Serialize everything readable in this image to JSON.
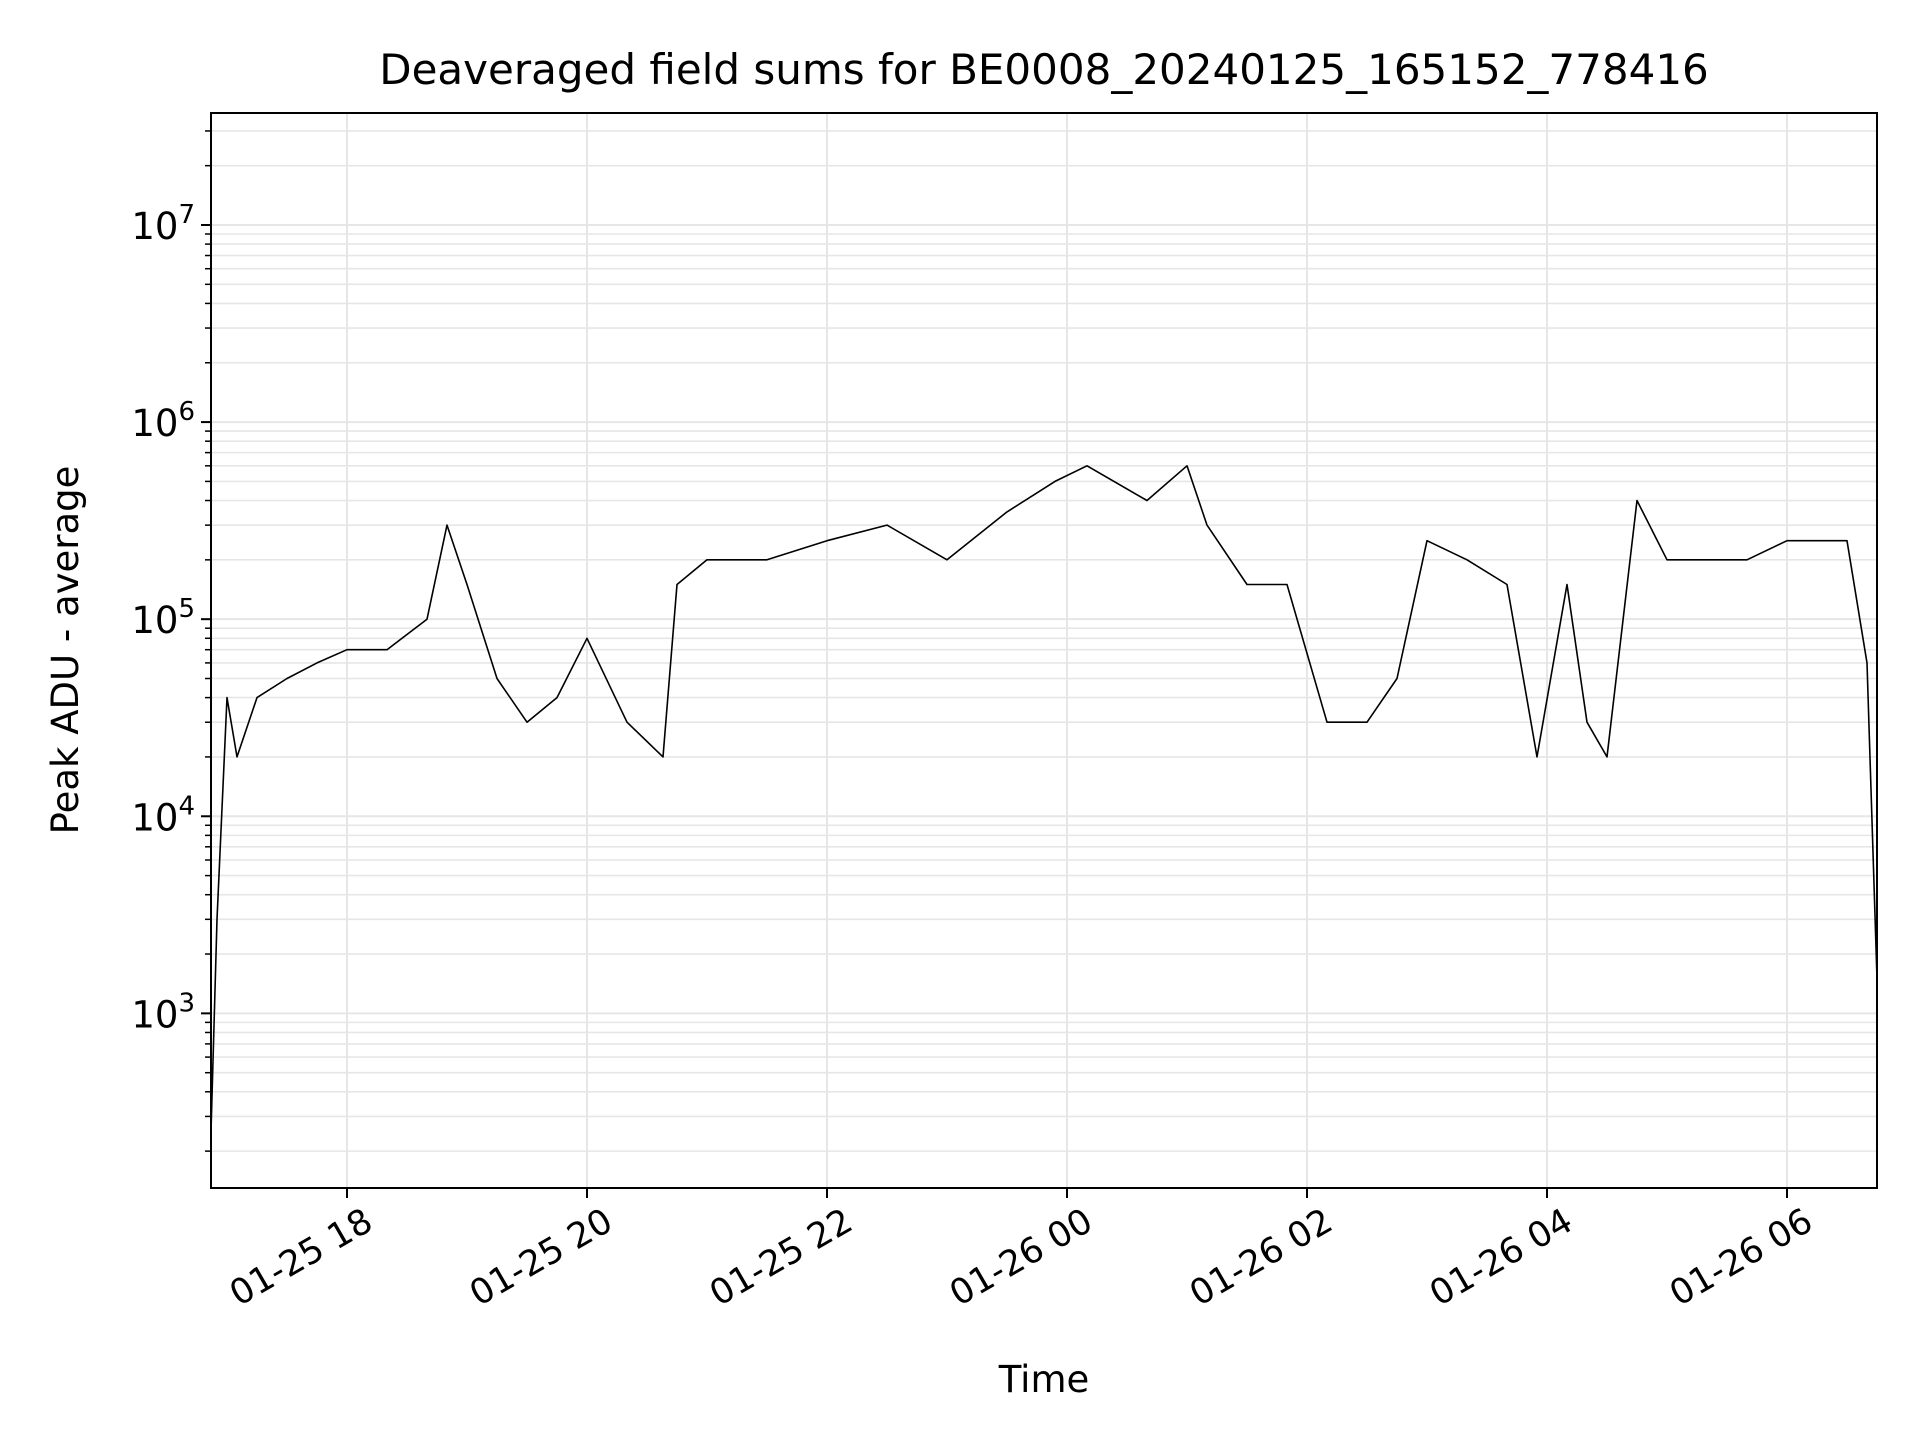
{
  "chart_data": {
    "type": "line",
    "title": "Deaveraged field sums for BE0008_20240125_165152_778416",
    "xlabel": "Time",
    "ylabel": "Peak ADU - average",
    "yscale": "log",
    "xlim": [
      "2024-01-25 16:52",
      "2024-01-26 06:45"
    ],
    "ylim": [
      130,
      37000000
    ],
    "grid": true,
    "line_color": "#000000",
    "x_ticks": [
      {
        "value": "2024-01-25 18:00",
        "label": "01-25 18"
      },
      {
        "value": "2024-01-25 20:00",
        "label": "01-25 20"
      },
      {
        "value": "2024-01-25 22:00",
        "label": "01-25 22"
      },
      {
        "value": "2024-01-26 00:00",
        "label": "01-26 00"
      },
      {
        "value": "2024-01-26 02:00",
        "label": "01-26 02"
      },
      {
        "value": "2024-01-26 04:00",
        "label": "01-26 04"
      },
      {
        "value": "2024-01-26 06:00",
        "label": "01-26 06"
      }
    ],
    "y_ticks": [
      {
        "value": 1000,
        "base": "10",
        "exp": "3"
      },
      {
        "value": 10000,
        "base": "10",
        "exp": "4"
      },
      {
        "value": 100000,
        "base": "10",
        "exp": "5"
      },
      {
        "value": 1000000,
        "base": "10",
        "exp": "6"
      },
      {
        "value": 10000000,
        "base": "10",
        "exp": "7"
      }
    ],
    "series": [
      {
        "x": [
          "2024-01-25 16:52",
          "2024-01-25 16:55",
          "2024-01-25 17:00",
          "2024-01-25 17:05",
          "2024-01-25 17:15",
          "2024-01-25 17:30",
          "2024-01-25 17:45",
          "2024-01-25 18:00",
          "2024-01-25 18:20",
          "2024-01-25 18:40",
          "2024-01-25 18:50",
          "2024-01-25 19:00",
          "2024-01-25 19:15",
          "2024-01-25 19:30",
          "2024-01-25 19:45",
          "2024-01-25 20:00",
          "2024-01-25 20:20",
          "2024-01-25 20:38",
          "2024-01-25 20:45",
          "2024-01-25 21:00",
          "2024-01-25 21:30",
          "2024-01-25 22:00",
          "2024-01-25 22:30",
          "2024-01-25 23:00",
          "2024-01-25 23:30",
          "2024-01-25 23:54",
          "2024-01-26 00:10",
          "2024-01-26 00:40",
          "2024-01-26 01:00",
          "2024-01-26 01:10",
          "2024-01-26 01:30",
          "2024-01-26 01:50",
          "2024-01-26 02:10",
          "2024-01-26 02:30",
          "2024-01-26 02:45",
          "2024-01-26 03:00",
          "2024-01-26 03:20",
          "2024-01-26 03:40",
          "2024-01-26 03:55",
          "2024-01-26 04:10",
          "2024-01-26 04:20",
          "2024-01-26 04:30",
          "2024-01-26 04:45",
          "2024-01-26 05:00",
          "2024-01-26 05:20",
          "2024-01-26 05:40",
          "2024-01-26 06:00",
          "2024-01-26 06:20",
          "2024-01-26 06:30",
          "2024-01-26 06:40",
          "2024-01-26 06:45"
        ],
        "y": [
          250,
          3000,
          40000,
          20000,
          40000,
          50000,
          60000,
          70000,
          70000,
          100000,
          300000,
          150000,
          50000,
          30000,
          40000,
          80000,
          30000,
          20000,
          150000,
          200000,
          200000,
          250000,
          300000,
          200000,
          350000,
          500000,
          600000,
          400000,
          600000,
          300000,
          150000,
          150000,
          30000,
          30000,
          50000,
          250000,
          200000,
          150000,
          20000,
          150000,
          30000,
          20000,
          400000,
          200000,
          200000,
          200000,
          250000,
          250000,
          250000,
          60000,
          1500
        ]
      }
    ]
  }
}
